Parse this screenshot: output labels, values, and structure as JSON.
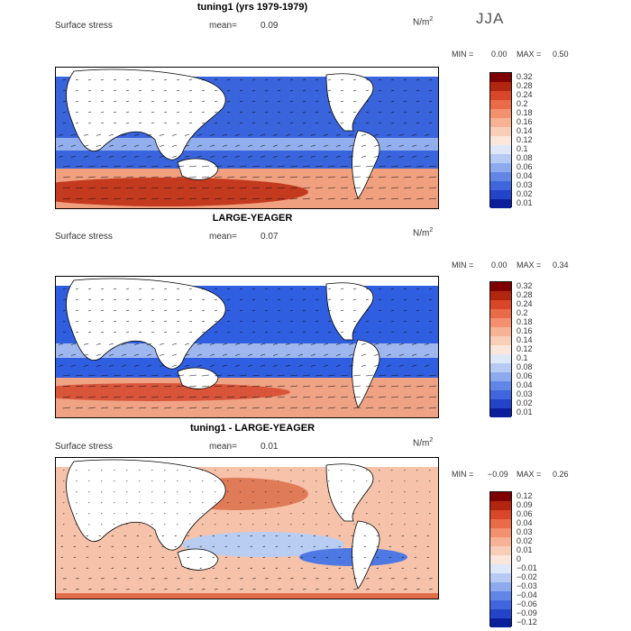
{
  "season": "JJA",
  "panels": [
    {
      "title": "tuning1 (yrs 1979-1979)",
      "variable": "Surface stress",
      "mean_label": "mean=",
      "mean_value": "0.09",
      "unit_base": "N/m",
      "unit_exp": "2",
      "min_label": "MIN =",
      "min_value": "0.00",
      "max_label": "MAX =",
      "max_value": "0.50",
      "colorbar_labels": [
        "0.32",
        "0.28",
        "0.24",
        "0.2",
        "0.18",
        "0.16",
        "0.14",
        "0.12",
        "0.1",
        "0.08",
        "0.06",
        "0.04",
        "0.03",
        "0.02",
        "0.01"
      ],
      "colorbar_colors": [
        "#7f0000",
        "#b2260f",
        "#d9472a",
        "#ea6b48",
        "#f2906f",
        "#f6b295",
        "#f8ceb8",
        "#fae6da",
        "#dfe8f8",
        "#b7caf3",
        "#8eaaee",
        "#6186e6",
        "#3f66dc",
        "#2344c8",
        "#0c1f9a"
      ]
    },
    {
      "title": "LARGE-YEAGER",
      "variable": "Surface stress",
      "mean_label": "mean=",
      "mean_value": "0.07",
      "unit_base": "N/m",
      "unit_exp": "2",
      "min_label": "MIN =",
      "min_value": "0.00",
      "max_label": "MAX =",
      "max_value": "0.34",
      "colorbar_labels": [
        "0.32",
        "0.28",
        "0.24",
        "0.2",
        "0.18",
        "0.16",
        "0.14",
        "0.12",
        "0.1",
        "0.08",
        "0.06",
        "0.04",
        "0.03",
        "0.02",
        "0.01"
      ],
      "colorbar_colors": [
        "#7f0000",
        "#b2260f",
        "#d9472a",
        "#ea6b48",
        "#f2906f",
        "#f6b295",
        "#f8ceb8",
        "#fae6da",
        "#dfe8f8",
        "#b7caf3",
        "#8eaaee",
        "#6186e6",
        "#3f66dc",
        "#2344c8",
        "#0c1f9a"
      ]
    },
    {
      "title": "tuning1 - LARGE-YEAGER",
      "variable": "Surface stress",
      "mean_label": "mean=",
      "mean_value": "0.01",
      "unit_base": "N/m",
      "unit_exp": "2",
      "min_label": "MIN =",
      "min_value": "−0.09",
      "max_label": "MAX =",
      "max_value": "0.26",
      "colorbar_labels": [
        "0.12",
        "0.09",
        "0.06",
        "0.04",
        "0.03",
        "0.02",
        "0.01",
        "0",
        "−0.01",
        "−0.02",
        "−0.03",
        "−0.04",
        "−0.06",
        "−0.09",
        "−0.12"
      ],
      "colorbar_colors": [
        "#7f0000",
        "#b2260f",
        "#d9472a",
        "#ea6b48",
        "#f2906f",
        "#f6b295",
        "#f8ceb8",
        "#fae6da",
        "#dfe8f8",
        "#b7caf3",
        "#8eaaee",
        "#6186e6",
        "#3f66dc",
        "#2344c8",
        "#0c1f9a"
      ]
    }
  ]
}
